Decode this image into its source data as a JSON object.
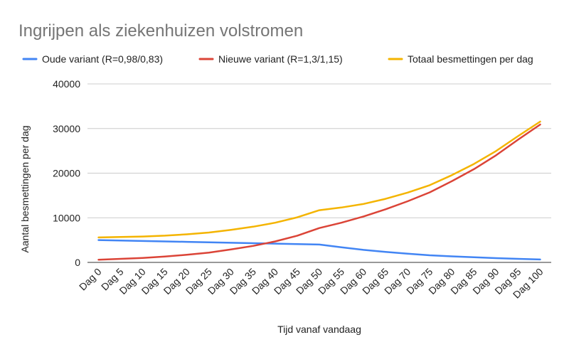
{
  "chart_data": {
    "type": "line",
    "title": "Ingrijpen als ziekenhuizen volstromen",
    "xlabel": "Tijd vanaf vandaag",
    "ylabel": "Aantal besmettingen per dag",
    "ylim": [
      0,
      40000
    ],
    "yticks": [
      "0",
      "10000",
      "20000",
      "30000",
      "40000"
    ],
    "grid": true,
    "legend_position": "top",
    "categories": [
      "Dag 0",
      "Dag 5",
      "Dag 10",
      "Dag 15",
      "Dag 20",
      "Dag 25",
      "Dag 30",
      "Dag 35",
      "Dag 40",
      "Dag 45",
      "Dag 50",
      "Dag 55",
      "Dag 60",
      "Dag 65",
      "Dag 70",
      "Dag 75",
      "Dag 80",
      "Dag 85",
      "Dag 90",
      "Dag 95",
      "Dag 100"
    ],
    "series": [
      {
        "name": "Oude variant (R=0,98/0,83)",
        "color": "#4285f4",
        "values": [
          5000,
          4900,
          4800,
          4700,
          4600,
          4500,
          4400,
          4300,
          4200,
          4100,
          4000,
          3400,
          2800,
          2350,
          1950,
          1600,
          1350,
          1150,
          950,
          800,
          650
        ]
      },
      {
        "name": "Nieuwe variant (R=1,3/1,15)",
        "color": "#db4437",
        "values": [
          600,
          800,
          1000,
          1300,
          1700,
          2200,
          2900,
          3700,
          4700,
          6000,
          7700,
          8900,
          10300,
          11900,
          13700,
          15700,
          18200,
          20900,
          24000,
          27500,
          30900
        ]
      },
      {
        "name": "Totaal besmettingen per dag",
        "color": "#f4b400",
        "values": [
          5600,
          5700,
          5800,
          6000,
          6300,
          6700,
          7300,
          8000,
          8900,
          10100,
          11700,
          12300,
          13100,
          14250,
          15650,
          17300,
          19550,
          22050,
          24950,
          28300,
          31550
        ]
      }
    ]
  }
}
